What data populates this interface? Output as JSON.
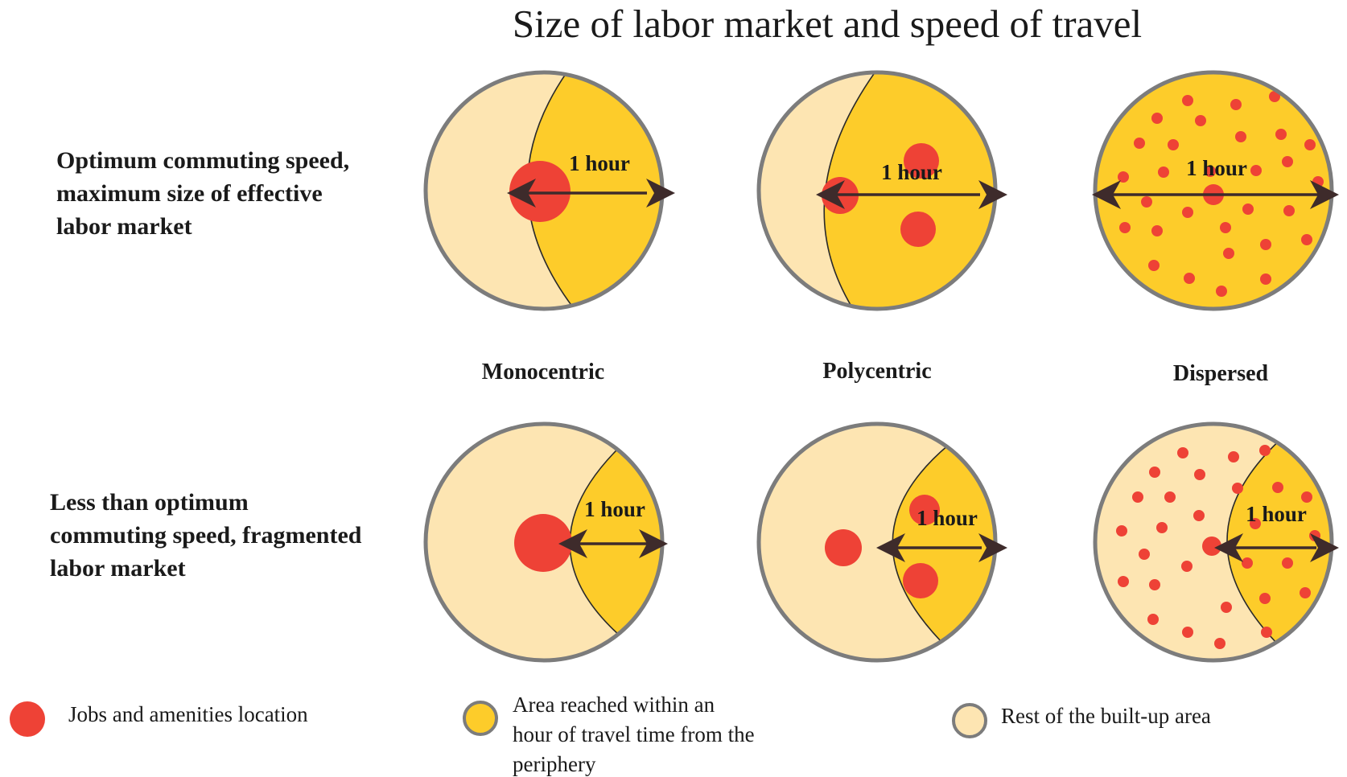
{
  "title": "Size of labor market and speed of travel",
  "row_labels": [
    [
      "Optimum commuting speed,",
      "maximum size of effective",
      "labor market"
    ],
    [
      "Less than optimum",
      "commuting speed, fragmented",
      "labor market"
    ]
  ],
  "column_labels": [
    "Monocentric",
    "Polycentric",
    "Dispersed"
  ],
  "arrow_label": "1 hour",
  "legend": [
    {
      "lines": [
        "Jobs and amenities location"
      ],
      "swatch": "red-dot"
    },
    {
      "lines": [
        "Area reached within an",
        "hour of travel time from the",
        "periphery"
      ],
      "swatch": "yellow-circle"
    },
    {
      "lines": [
        "Rest of the built-up area"
      ],
      "swatch": "cream-circle"
    }
  ],
  "colors": {
    "reached_area": "#FDCC2A",
    "rest_area": "#FDE5B2",
    "jobs": "#EE4236",
    "outline": "#7C7C7C",
    "arrow": "#3E2B2B"
  }
}
